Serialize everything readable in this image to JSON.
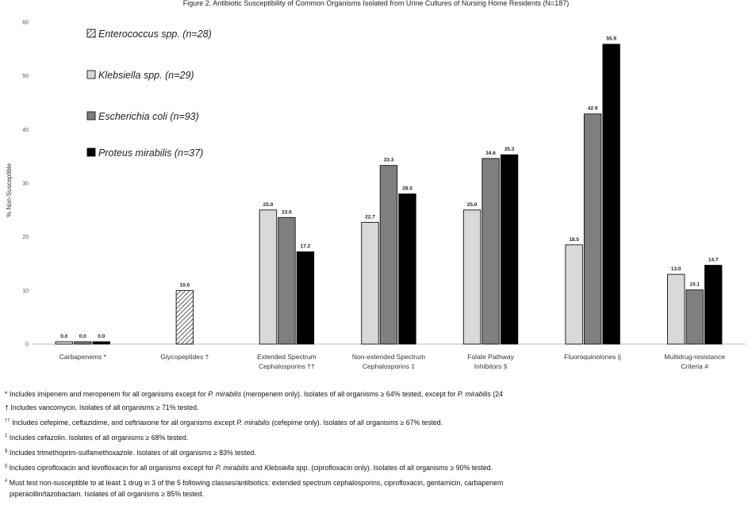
{
  "chart_data": {
    "type": "bar",
    "title": "Figure 2. Antibiotic Susceptibility of Common Organisms Isolated from Urine Cultures of Nursing Home Residents (N=187)",
    "ylabel": "% Non-Susceptible",
    "xlabel": "",
    "ylim": [
      0,
      60
    ],
    "yticks": [
      0,
      10,
      20,
      30,
      40,
      50,
      60
    ],
    "grid": false,
    "legend_position": "top-left",
    "categories": [
      [
        "Carbapenems *"
      ],
      [
        "Glycopeptides †"
      ],
      [
        "Extended Spectrum",
        "Cephalosporins ††"
      ],
      [
        "Non-extended Spectrum",
        "Cephalosporins ‡"
      ],
      [
        "Folate Pathway",
        "Inhibitors §"
      ],
      [
        "Fluoroquinolones ||"
      ],
      [
        "Multidrug-resistance",
        "Criteria #"
      ]
    ],
    "series": [
      {
        "name": "Enterococcus spp. (n=28)",
        "pattern": "hatch",
        "color": "#ffffff",
        "values": [
          null,
          10.0,
          null,
          null,
          null,
          null,
          null
        ],
        "labels": [
          "",
          "10.0",
          "",
          "",
          "",
          "",
          ""
        ]
      },
      {
        "name": "Klebsiella spp. (n=29)",
        "pattern": "solid",
        "color": "#d9d9d9",
        "values": [
          0.0,
          null,
          25.0,
          22.7,
          25.0,
          18.5,
          13.0
        ],
        "labels": [
          "0.0",
          "",
          "25.0",
          "22.7",
          "25.0",
          "18.5",
          "13.0"
        ]
      },
      {
        "name": "Escherichia coli (n=93)",
        "pattern": "solid",
        "color": "#7f7f7f",
        "values": [
          0.0,
          null,
          23.6,
          33.3,
          34.6,
          42.9,
          10.1
        ],
        "labels": [
          "0.0",
          "",
          "23.6",
          "33.3",
          "34.6",
          "42.9",
          "10.1"
        ]
      },
      {
        "name": "Proteus mirabilis (n=37)",
        "pattern": "solid",
        "color": "#000000",
        "values": [
          0.0,
          null,
          17.2,
          28.0,
          35.3,
          55.9,
          14.7
        ],
        "labels": [
          "0.0",
          "",
          "17.2",
          "28.0",
          "35.3",
          "55.9",
          "14.7"
        ]
      }
    ]
  },
  "footnotes": [
    {
      "mark": "*",
      "sup": false,
      "parts": [
        {
          "t": "Includes imipenem and meropenem for all organisms except for "
        },
        {
          "t": "P. mirabilis",
          "i": true
        },
        {
          "t": " (meropenem only). Isolates of all organisms ≥ 64% tested, except for "
        },
        {
          "t": "P. mirabilis",
          "i": true
        },
        {
          "t": " (24"
        }
      ]
    },
    {
      "mark": "†",
      "sup": false,
      "parts": [
        {
          "t": "Includes vancomycin. Isolates of all organisms ≥ 71% tested."
        }
      ]
    },
    {
      "mark": "††",
      "sup": true,
      "parts": [
        {
          "t": "Includes cefepime, ceftazidime, and ceftriaxone for all organisms except "
        },
        {
          "t": "P. mirabilis",
          "i": true
        },
        {
          "t": " (cefepime only). Isolates of all organisms ≥ 67% tested."
        }
      ]
    },
    {
      "mark": "‡",
      "sup": true,
      "parts": [
        {
          "t": "Includes cefazolin. Isolates of all organisms ≥ 68% tested."
        }
      ]
    },
    {
      "mark": "§",
      "sup": true,
      "parts": [
        {
          "t": "Includes trimethoprim-sulfamethoxazole. Isolates of all organisms ≥ 83% tested."
        }
      ]
    },
    {
      "mark": "||",
      "sup": true,
      "parts": [
        {
          "t": "Includes ciprofloxacin and levofloxacin for all organisms except for "
        },
        {
          "t": "P. mirabilis",
          "i": true
        },
        {
          "t": " and "
        },
        {
          "t": "Klebsiella",
          "i": true
        },
        {
          "t": " spp. (ciprofloxacin only). Isolates of all organisms ≥ 90% tested."
        }
      ]
    },
    {
      "mark": "#",
      "sup": true,
      "parts": [
        {
          "t": "Must test non-susceptible to at least 1 drug in 3 of the 5 following classes/antibiotics: extended spectrum cephalosporins, ciprofloxacin, gentamicin, carbapenem"
        }
      ],
      "continuation": "piperacillin/tazobactam. Isolates of all organisms ≥ 85% tested."
    }
  ]
}
